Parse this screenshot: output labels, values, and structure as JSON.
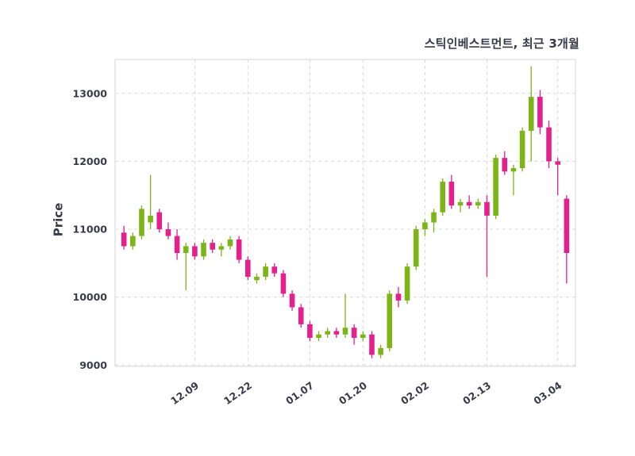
{
  "chart_data": {
    "type": "candlestick",
    "title": "스틱인베스트먼트, 최근 3개월",
    "ylabel": "Price",
    "xlabel": "",
    "legend": "none",
    "grid": "dashed",
    "up_color": "#7CB518",
    "down_color": "#E4208C",
    "grid_color": "#d9d9d9",
    "border_color": "#d5d5d5",
    "text_color": "#3a3a4a",
    "background_color": "#ffffff",
    "ylim": [
      8980,
      13500
    ],
    "yticks": [
      9000,
      10000,
      11000,
      12000,
      13000
    ],
    "xticks": [
      {
        "label": "12.09",
        "index": 8
      },
      {
        "label": "12.22",
        "index": 14
      },
      {
        "label": "01.07",
        "index": 21
      },
      {
        "label": "01.20",
        "index": 27
      },
      {
        "label": "02.02",
        "index": 34
      },
      {
        "label": "02.13",
        "index": 41
      },
      {
        "label": "03.04",
        "index": 49
      }
    ],
    "candle_format": "[open, high, low, close]",
    "candles": [
      [
        10950,
        11050,
        10700,
        10750
      ],
      [
        10750,
        10950,
        10700,
        10900
      ],
      [
        10900,
        11350,
        10850,
        11300
      ],
      [
        11100,
        11800,
        11000,
        11200
      ],
      [
        11250,
        11300,
        10950,
        11000
      ],
      [
        11000,
        11100,
        10850,
        10900
      ],
      [
        10900,
        11000,
        10550,
        10650
      ],
      [
        10650,
        10800,
        10100,
        10750
      ],
      [
        10750,
        10800,
        10550,
        10600
      ],
      [
        10600,
        10850,
        10550,
        10800
      ],
      [
        10800,
        10850,
        10650,
        10700
      ],
      [
        10700,
        10800,
        10600,
        10750
      ],
      [
        10750,
        10900,
        10700,
        10850
      ],
      [
        10850,
        10900,
        10500,
        10550
      ],
      [
        10550,
        10600,
        10250,
        10300
      ],
      [
        10250,
        10350,
        10200,
        10300
      ],
      [
        10300,
        10500,
        10250,
        10450
      ],
      [
        10450,
        10500,
        10300,
        10350
      ],
      [
        10350,
        10400,
        10000,
        10050
      ],
      [
        10050,
        10100,
        9800,
        9850
      ],
      [
        9850,
        9900,
        9550,
        9600
      ],
      [
        9600,
        9650,
        9350,
        9400
      ],
      [
        9400,
        9500,
        9350,
        9450
      ],
      [
        9450,
        9550,
        9400,
        9500
      ],
      [
        9500,
        9550,
        9400,
        9450
      ],
      [
        9450,
        10050,
        9400,
        9550
      ],
      [
        9550,
        9600,
        9300,
        9400
      ],
      [
        9400,
        9500,
        9350,
        9450
      ],
      [
        9450,
        9500,
        9100,
        9150
      ],
      [
        9150,
        9300,
        9100,
        9250
      ],
      [
        9250,
        10100,
        9200,
        10050
      ],
      [
        10050,
        10150,
        9850,
        9950
      ],
      [
        9950,
        10500,
        9900,
        10450
      ],
      [
        10450,
        11050,
        10400,
        11000
      ],
      [
        11000,
        11150,
        10900,
        11100
      ],
      [
        11100,
        11300,
        10950,
        11250
      ],
      [
        11250,
        11750,
        11200,
        11700
      ],
      [
        11700,
        11800,
        11300,
        11350
      ],
      [
        11350,
        11450,
        11250,
        11400
      ],
      [
        11400,
        11500,
        11300,
        11350
      ],
      [
        11350,
        11450,
        11300,
        11400
      ],
      [
        11400,
        11500,
        10300,
        11200
      ],
      [
        11200,
        12100,
        11150,
        12050
      ],
      [
        12050,
        12150,
        11800,
        11850
      ],
      [
        11850,
        11950,
        11500,
        11900
      ],
      [
        11900,
        12500,
        11850,
        12450
      ],
      [
        12450,
        13400,
        12000,
        12950
      ],
      [
        12950,
        13050,
        12400,
        12500
      ],
      [
        12500,
        12600,
        11900,
        12000
      ],
      [
        12000,
        12050,
        11500,
        11950
      ],
      [
        11450,
        11500,
        10200,
        10650
      ]
    ]
  }
}
